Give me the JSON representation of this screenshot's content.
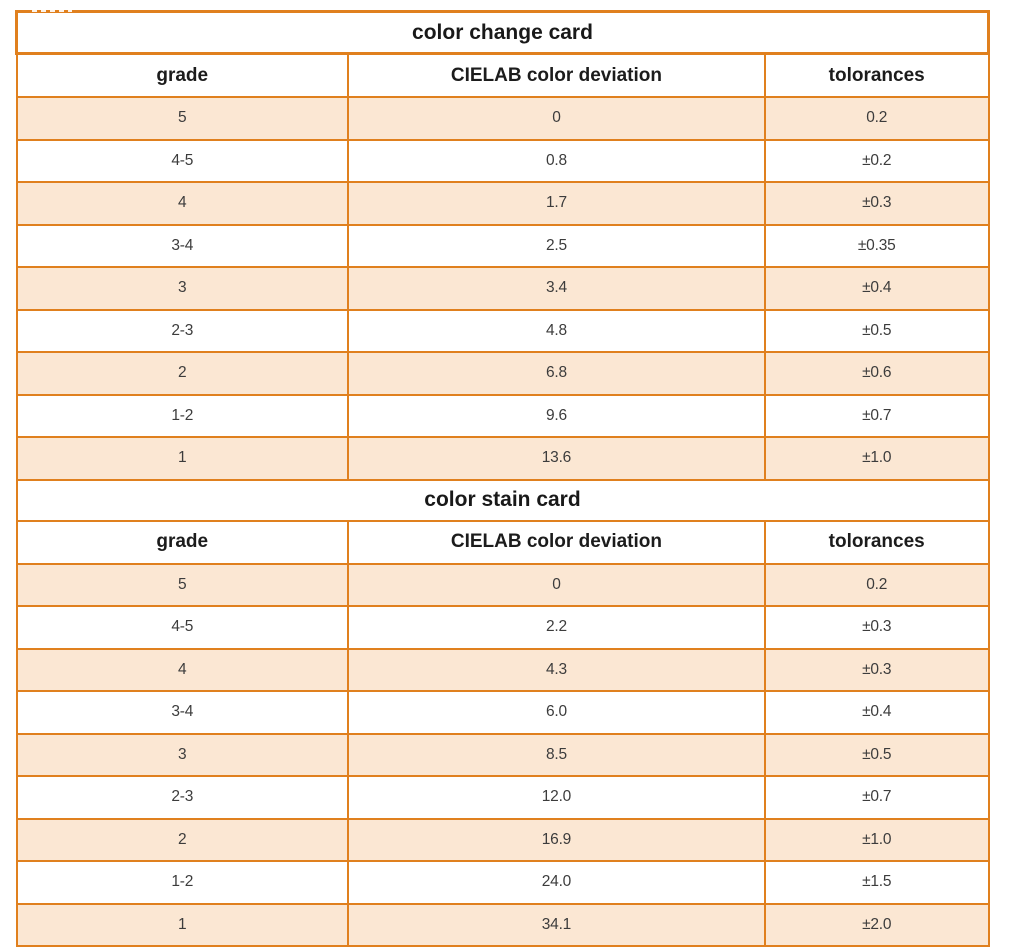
{
  "colors": {
    "border_orange": "#e0801e",
    "row_shaded": "#fbe7d3",
    "row_plain": "#ffffff",
    "title_text": "#191919",
    "data_text": "#3c3c3c"
  },
  "tables": [
    {
      "title": "color change card",
      "headers": [
        "grade",
        "CIELAB color deviation",
        "tolorances"
      ],
      "rows": [
        [
          "5",
          "0",
          "0.2"
        ],
        [
          "4-5",
          "0.8",
          "±0.2"
        ],
        [
          "4",
          "1.7",
          "±0.3"
        ],
        [
          "3-4",
          "2.5",
          "±0.35"
        ],
        [
          "3",
          "3.4",
          "±0.4"
        ],
        [
          "2-3",
          "4.8",
          "±0.5"
        ],
        [
          "2",
          "6.8",
          "±0.6"
        ],
        [
          "1-2",
          "9.6",
          "±0.7"
        ],
        [
          "1",
          "13.6",
          "±1.0"
        ]
      ]
    },
    {
      "title": "color stain card",
      "headers": [
        "grade",
        "CIELAB color deviation",
        "tolorances"
      ],
      "rows": [
        [
          "5",
          "0",
          "0.2"
        ],
        [
          "4-5",
          "2.2",
          "±0.3"
        ],
        [
          "4",
          "4.3",
          "±0.3"
        ],
        [
          "3-4",
          "6.0",
          "±0.4"
        ],
        [
          "3",
          "8.5",
          "±0.5"
        ],
        [
          "2-3",
          "12.0",
          "±0.7"
        ],
        [
          "2",
          "16.9",
          "±1.0"
        ],
        [
          "1-2",
          "24.0",
          "±1.5"
        ],
        [
          "1",
          "34.1",
          "±2.0"
        ]
      ]
    }
  ]
}
